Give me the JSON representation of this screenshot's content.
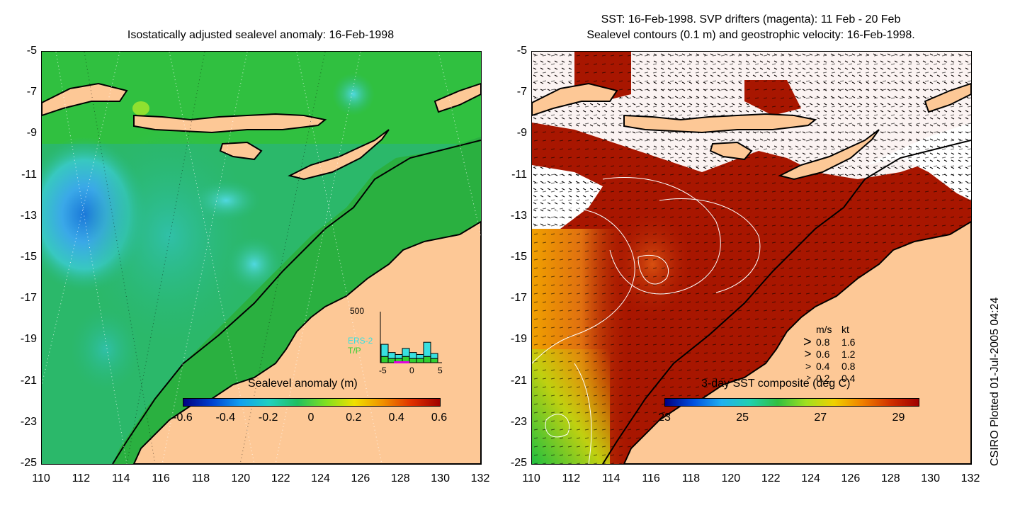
{
  "left_panel": {
    "title": "Isostatically adjusted sealevel anomaly: 16-Feb-1998",
    "colorbar_label": "Sealevel anomaly (m)",
    "colorbar_ticks": [
      "-0.6",
      "-0.4",
      "-0.2",
      "0",
      "0.2",
      "0.4",
      "0.6"
    ],
    "colorbar_range": [
      -0.6,
      0.6
    ],
    "inset_histogram": {
      "ymax_label": "500",
      "xticks": [
        "-5",
        "0",
        "5"
      ],
      "series": [
        "ERS-2",
        "T/P"
      ],
      "series_colors": [
        "#38e0e0",
        "#30d030"
      ],
      "ers2_counts": [
        120,
        60,
        40,
        80,
        60,
        40,
        140,
        50
      ],
      "tp_counts": [
        60,
        40,
        40,
        60,
        40,
        40,
        60,
        40
      ]
    }
  },
  "right_panel": {
    "title_line1": "SST: 16-Feb-1998. SVP drifters (magenta): 11 Feb - 20 Feb",
    "title_line2": "Sealevel contours (0.1 m) and geostrophic velocity: 16-Feb-1998.",
    "colorbar_label": "3-day SST composite (deg C)",
    "colorbar_ticks": [
      "23",
      "25",
      "27",
      "29"
    ],
    "colorbar_range": [
      23,
      29.5
    ],
    "velocity_legend": {
      "header_ms": "m/s",
      "header_kt": "kt",
      "rows": [
        {
          "ms": "0.8",
          "kt": "1.6"
        },
        {
          "ms": "0.6",
          "kt": "1.2"
        },
        {
          "ms": "0.4",
          "kt": "0.8"
        },
        {
          "ms": "0.2",
          "kt": "0.4"
        }
      ]
    }
  },
  "axes": {
    "y_ticks": [
      "-5",
      "-7",
      "-9",
      "-11",
      "-13",
      "-15",
      "-17",
      "-19",
      "-21",
      "-23",
      "-25"
    ],
    "x_ticks": [
      "110",
      "112",
      "114",
      "116",
      "118",
      "120",
      "122",
      "124",
      "126",
      "128",
      "130",
      "132"
    ]
  },
  "side_note": "CSIRO Plotted 01-Jul-2005 04:24",
  "colors": {
    "land": "#fdc896",
    "sea_green": "#22b84a",
    "sst_dark": "#a81600",
    "coast": "#000000"
  }
}
